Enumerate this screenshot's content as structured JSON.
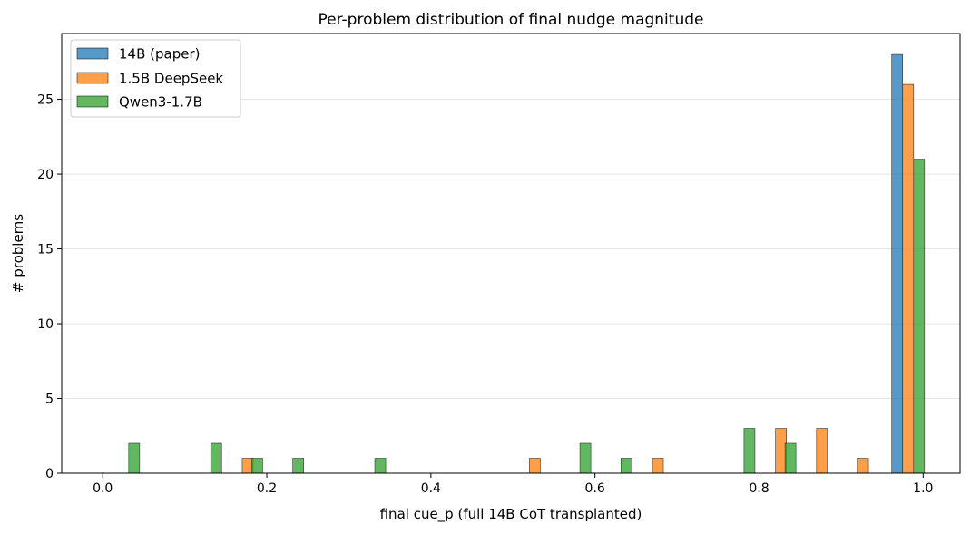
{
  "chart_data": {
    "type": "bar",
    "title": "Per-problem distribution of final nudge magnitude",
    "xlabel": "final cue_p (full 14B CoT transplanted)",
    "ylabel": "# problems",
    "xlim": [
      -0.05,
      1.045
    ],
    "ylim": [
      0,
      29.4
    ],
    "xticks": [
      0.0,
      0.2,
      0.4,
      0.6,
      0.8,
      1.0
    ],
    "xtick_labels": [
      "0.0",
      "0.2",
      "0.4",
      "0.6",
      "0.8",
      "1.0"
    ],
    "yticks": [
      0,
      5,
      10,
      15,
      20,
      25
    ],
    "ytick_labels": [
      "0",
      "5",
      "10",
      "15",
      "20",
      "25"
    ],
    "grid": "y-axis dashed light",
    "legend_position": "top-left",
    "bar_width": 0.0133,
    "series": [
      {
        "name": "14B (paper)",
        "color": "#1f77b4",
        "points": [
          {
            "x": 0.9683,
            "count": 28
          }
        ]
      },
      {
        "name": "1.5B DeepSeek",
        "color": "#ff7f0e",
        "points": [
          {
            "x": 0.1767,
            "count": 1
          },
          {
            "x": 0.5267,
            "count": 1
          },
          {
            "x": 0.6767,
            "count": 1
          },
          {
            "x": 0.8267,
            "count": 3
          },
          {
            "x": 0.8767,
            "count": 3
          },
          {
            "x": 0.9267,
            "count": 1
          },
          {
            "x": 0.9817,
            "count": 26
          }
        ]
      },
      {
        "name": "Qwen3-1.7B",
        "color": "#2ca02c",
        "points": [
          {
            "x": 0.0383,
            "count": 2
          },
          {
            "x": 0.1383,
            "count": 2
          },
          {
            "x": 0.1883,
            "count": 1
          },
          {
            "x": 0.2383,
            "count": 1
          },
          {
            "x": 0.3383,
            "count": 1
          },
          {
            "x": 0.5883,
            "count": 2
          },
          {
            "x": 0.6383,
            "count": 1
          },
          {
            "x": 0.7883,
            "count": 3
          },
          {
            "x": 0.8383,
            "count": 2
          },
          {
            "x": 0.995,
            "count": 21
          }
        ]
      }
    ]
  }
}
